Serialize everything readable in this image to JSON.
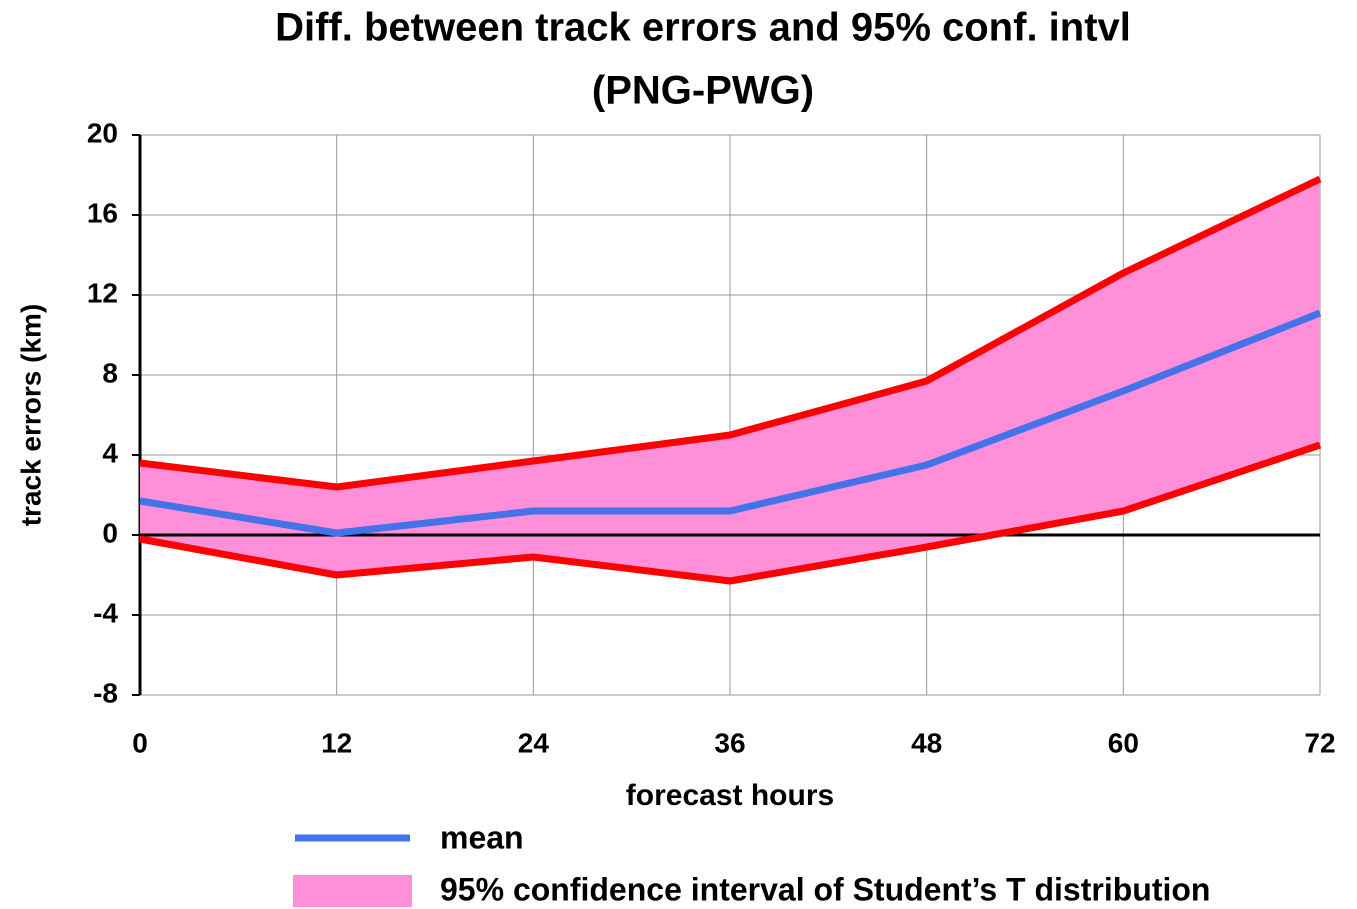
{
  "chart_data": {
    "type": "line",
    "title": [
      "Diff. between track errors and 95% conf. intvl",
      "(PNG-PWG)"
    ],
    "x_label": "forecast hours",
    "y_label": "track errors (km)",
    "x": [
      0,
      12,
      24,
      36,
      48,
      60,
      72
    ],
    "series": [
      {
        "name": "mean",
        "color": "#4472e8",
        "values": [
          1.7,
          0.1,
          1.2,
          1.2,
          3.5,
          7.2,
          11.1
        ]
      }
    ],
    "band": {
      "name": "95% confidence interval of Student’s T distribution",
      "color": "#ff8fd8",
      "edge_color": "#ff0000",
      "upper": [
        3.6,
        2.4,
        3.7,
        5.0,
        7.7,
        13.1,
        17.8
      ],
      "lower": [
        -0.2,
        -2.0,
        -1.1,
        -2.3,
        -0.6,
        1.2,
        4.5
      ]
    },
    "xlim": [
      0,
      72
    ],
    "xticks": [
      0,
      12,
      24,
      36,
      48,
      60,
      72
    ],
    "ylim": [
      -8,
      20
    ],
    "yticks": [
      -8,
      -4,
      0,
      4,
      8,
      12,
      16,
      20
    ],
    "grid": true
  }
}
